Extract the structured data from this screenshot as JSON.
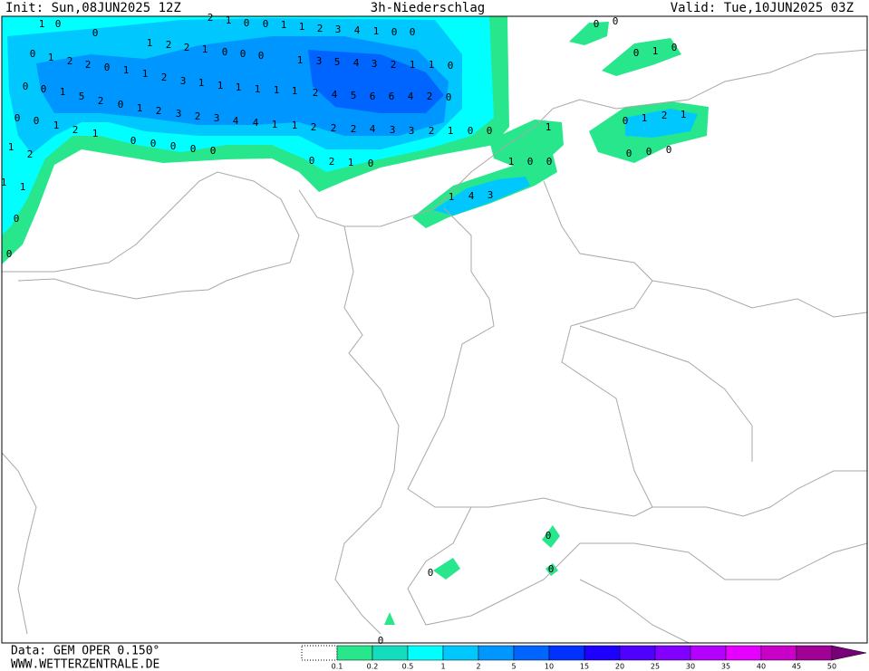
{
  "header": {
    "init": "Init: Sun,08JUN2025 12Z",
    "title": "3h-Niederschlag",
    "valid": "Valid: Tue,10JUN2025 03Z"
  },
  "footer": {
    "data_source": "Data: GEM OPER 0.150°",
    "website": "WWW.WETTERZENTRALE.DE"
  },
  "colorbar": {
    "labels": [
      0.1,
      0.2,
      0.5,
      1,
      2,
      5,
      10,
      15,
      20,
      25,
      30,
      35,
      40,
      45,
      50
    ],
    "colors": [
      "#28e68c",
      "#14dcbe",
      "#00ffff",
      "#00c8ff",
      "#0096ff",
      "#0064ff",
      "#0032ff",
      "#1e00ff",
      "#5000ff",
      "#8200ff",
      "#b400ff",
      "#e600ff",
      "#c800c8",
      "#a00096",
      "#780078"
    ]
  },
  "map": {
    "precip_labels": [
      1,
      0,
      0,
      2,
      1,
      0,
      0,
      1,
      1,
      2,
      3,
      4,
      1,
      0,
      0,
      1,
      2,
      2,
      1,
      0,
      0,
      0,
      0,
      1,
      2,
      2,
      0,
      1,
      1,
      2,
      3,
      1,
      1,
      1,
      1,
      1,
      1,
      1,
      3,
      5,
      4,
      3,
      2,
      1,
      1,
      0,
      0,
      0,
      1,
      5,
      2,
      0,
      1,
      2,
      3,
      2,
      3,
      4,
      4,
      1,
      1,
      2,
      4,
      5,
      6,
      6,
      4,
      2,
      0,
      0,
      0,
      1,
      2,
      1,
      0,
      0,
      0,
      0,
      0,
      2,
      2,
      2,
      4,
      3,
      3,
      2,
      1,
      0,
      0,
      1,
      2,
      1,
      1,
      0,
      0,
      0,
      2,
      1,
      0,
      1,
      1,
      0,
      0,
      1,
      4,
      3,
      0,
      0,
      0,
      1,
      0,
      0,
      1,
      2,
      1,
      0,
      0,
      0,
      0,
      0,
      0,
      0
    ]
  }
}
